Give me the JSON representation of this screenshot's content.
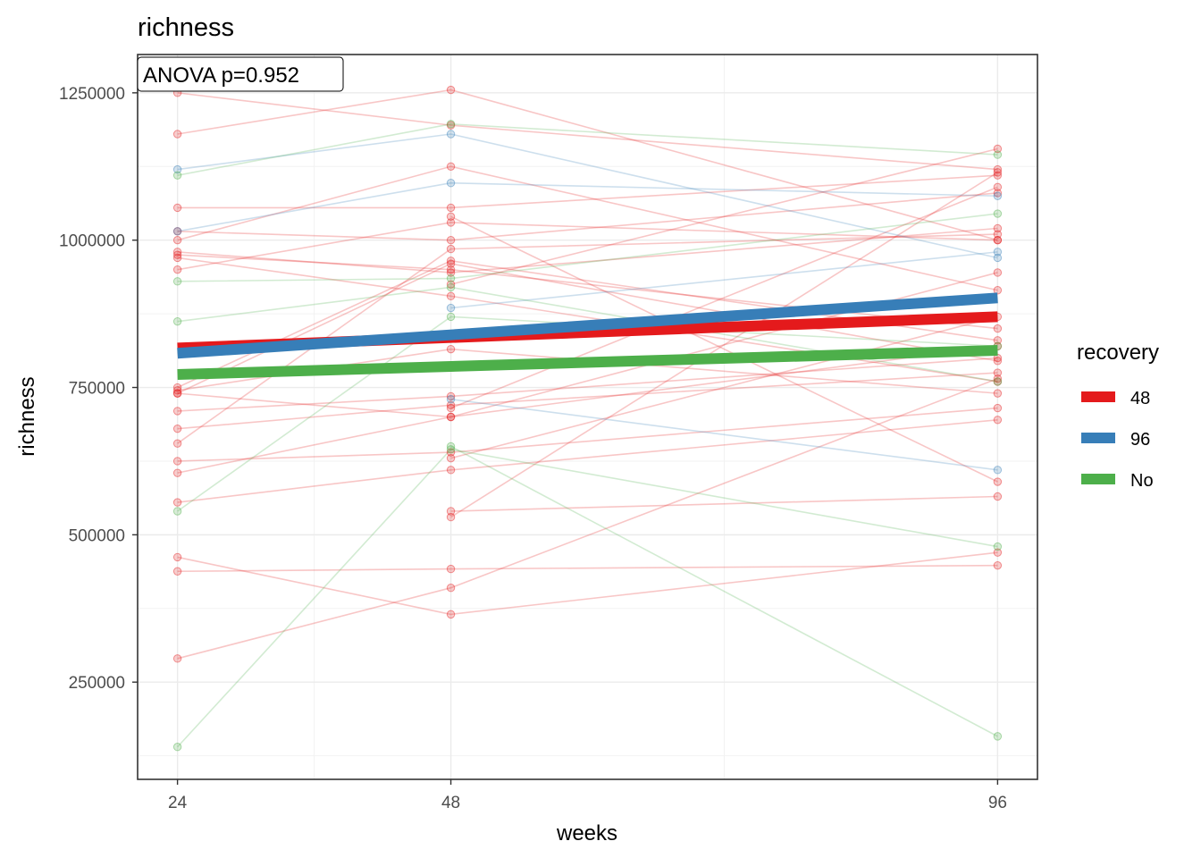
{
  "chart_data": {
    "type": "line",
    "title": "richness",
    "xlabel": "weeks",
    "ylabel": "richness",
    "annotation": "ANOVA p=0.952",
    "x_ticks": [
      "24",
      "48",
      "96"
    ],
    "y_ticks": [
      "250000",
      "500000",
      "750000",
      "1000000",
      "1250000"
    ],
    "xlim": [
      20.5,
      99.5
    ],
    "ylim": [
      85000,
      1315000
    ],
    "grid": true,
    "legend": {
      "title": "recovery",
      "position": "right",
      "entries": [
        {
          "label": "48",
          "color": "#e41a1c"
        },
        {
          "label": "96",
          "color": "#377eb8"
        },
        {
          "label": "No",
          "color": "#4daf4a"
        }
      ]
    },
    "trend_lines": [
      {
        "name": "48",
        "color": "#e41a1c",
        "x": [
          24,
          96
        ],
        "y": [
          817000,
          870000
        ]
      },
      {
        "name": "96",
        "color": "#377eb8",
        "x": [
          24,
          96
        ],
        "y": [
          808000,
          902000
        ]
      },
      {
        "name": "No",
        "color": "#4daf4a",
        "x": [
          24,
          96
        ],
        "y": [
          772000,
          813000
        ]
      }
    ],
    "subject_lines": [
      {
        "group": "48",
        "x": [
          24,
          48,
          96
        ],
        "y": [
          1250000,
          1195000,
          1120000
        ]
      },
      {
        "group": "48",
        "x": [
          24,
          48,
          96
        ],
        "y": [
          1180000,
          1255000,
          1000000
        ]
      },
      {
        "group": "48",
        "x": [
          24,
          48,
          96
        ],
        "y": [
          1055000,
          1055000,
          1110000
        ]
      },
      {
        "group": "48",
        "x": [
          24,
          48,
          96
        ],
        "y": [
          1015000,
          1000000,
          1080000
        ]
      },
      {
        "group": "48",
        "x": [
          24,
          48,
          96
        ],
        "y": [
          1000000,
          1125000,
          915000
        ]
      },
      {
        "group": "48",
        "x": [
          24,
          48,
          96
        ],
        "y": [
          980000,
          945000,
          1020000
        ]
      },
      {
        "group": "48",
        "x": [
          24,
          48,
          96
        ],
        "y": [
          975000,
          950000,
          850000
        ]
      },
      {
        "group": "48",
        "x": [
          24,
          48,
          96
        ],
        "y": [
          970000,
          905000,
          760000
        ]
      },
      {
        "group": "48",
        "x": [
          24,
          48,
          96
        ],
        "y": [
          950000,
          1030000,
          1000000
        ]
      },
      {
        "group": "48",
        "x": [
          24,
          48,
          96
        ],
        "y": [
          750000,
          965000,
          830000
        ]
      },
      {
        "group": "48",
        "x": [
          24,
          48,
          96
        ],
        "y": [
          740000,
          960000,
          795000
        ]
      },
      {
        "group": "48",
        "x": [
          24,
          48,
          96
        ],
        "y": [
          745000,
          815000,
          740000
        ]
      },
      {
        "group": "48",
        "x": [
          24,
          48,
          96
        ],
        "y": [
          740000,
          700000,
          945000
        ]
      },
      {
        "group": "48",
        "x": [
          24,
          48,
          96
        ],
        "y": [
          710000,
          735000,
          800000
        ]
      },
      {
        "group": "48",
        "x": [
          24,
          48,
          96
        ],
        "y": [
          680000,
          720000,
          775000
        ]
      },
      {
        "group": "48",
        "x": [
          24,
          48,
          96
        ],
        "y": [
          655000,
          985000,
          1010000
        ]
      },
      {
        "group": "48",
        "x": [
          24,
          48,
          96
        ],
        "y": [
          625000,
          640000,
          715000
        ]
      },
      {
        "group": "48",
        "x": [
          24,
          48,
          96
        ],
        "y": [
          605000,
          700000,
          820000
        ]
      },
      {
        "group": "48",
        "x": [
          24,
          48,
          96
        ],
        "y": [
          555000,
          610000,
          695000
        ]
      },
      {
        "group": "48",
        "x": [
          24,
          48,
          96
        ],
        "y": [
          462000,
          365000,
          470000
        ]
      },
      {
        "group": "48",
        "x": [
          24,
          48,
          96
        ],
        "y": [
          438000,
          442000,
          448000
        ]
      },
      {
        "group": "48",
        "x": [
          24,
          48,
          96
        ],
        "y": [
          290000,
          410000,
          765000
        ]
      },
      {
        "group": "48",
        "x": [
          48,
          96
        ],
        "y": [
          1040000,
          590000
        ]
      },
      {
        "group": "48",
        "x": [
          48,
          96
        ],
        "y": [
          540000,
          565000
        ]
      },
      {
        "group": "48",
        "x": [
          48,
          96
        ],
        "y": [
          530000,
          1115000
        ]
      },
      {
        "group": "48",
        "x": [
          48,
          96
        ],
        "y": [
          630000,
          870000
        ]
      },
      {
        "group": "48",
        "x": [
          48,
          96
        ],
        "y": [
          715000,
          1090000
        ]
      },
      {
        "group": "48",
        "x": [
          48,
          96
        ],
        "y": [
          925000,
          1155000
        ]
      },
      {
        "group": "96",
        "x": [
          24,
          48,
          96
        ],
        "y": [
          1120000,
          1180000,
          970000
        ]
      },
      {
        "group": "96",
        "x": [
          24,
          48,
          96
        ],
        "y": [
          1015000,
          1097000,
          1075000
        ]
      },
      {
        "group": "96",
        "x": [
          48,
          96
        ],
        "y": [
          885000,
          980000
        ]
      },
      {
        "group": "96",
        "x": [
          48,
          96
        ],
        "y": [
          730000,
          610000
        ]
      },
      {
        "group": "No",
        "x": [
          24,
          48,
          96
        ],
        "y": [
          1110000,
          1197000,
          1145000
        ]
      },
      {
        "group": "No",
        "x": [
          24,
          48,
          96
        ],
        "y": [
          930000,
          935000,
          1045000
        ]
      },
      {
        "group": "No",
        "x": [
          24,
          48,
          96
        ],
        "y": [
          862000,
          920000,
          760000
        ]
      },
      {
        "group": "No",
        "x": [
          24,
          48,
          96
        ],
        "y": [
          540000,
          870000,
          820000
        ]
      },
      {
        "group": "No",
        "x": [
          24,
          48,
          96
        ],
        "y": [
          140000,
          645000,
          480000
        ]
      },
      {
        "group": "No",
        "x": [
          48,
          96
        ],
        "y": [
          650000,
          158000
        ]
      }
    ]
  }
}
